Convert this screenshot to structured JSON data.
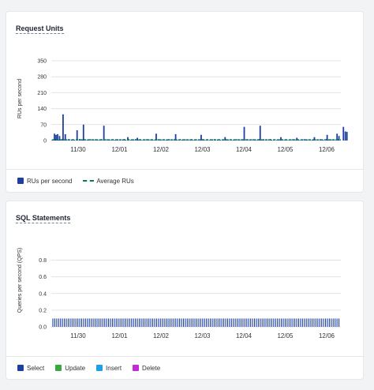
{
  "panels": {
    "ru": {
      "title": "Request Units"
    },
    "sql": {
      "title": "SQL Statements"
    }
  },
  "chart_data": [
    {
      "type": "bar",
      "title": "Request Units",
      "ylabel": "RUs per second",
      "ylim": [
        0,
        350
      ],
      "y_ticks": [
        0,
        70,
        140,
        210,
        280,
        350
      ],
      "x_ticks": [
        "11/30",
        "12/01",
        "12/02",
        "12/03",
        "12/04",
        "12/05",
        "12/06"
      ],
      "grid": true,
      "legend_position": "bottom-left",
      "series": [
        {
          "name": "RUs per second",
          "color": "#1d3f9e",
          "baseline": 5,
          "spikes": [
            {
              "x": 0.0,
              "y": 30
            },
            {
              "x": 0.05,
              "y": 25
            },
            {
              "x": 0.1,
              "y": 28
            },
            {
              "x": 0.16,
              "y": 20
            },
            {
              "x": 0.27,
              "y": 115
            },
            {
              "x": 0.34,
              "y": 28
            },
            {
              "x": 0.71,
              "y": 45
            },
            {
              "x": 0.91,
              "y": 70
            },
            {
              "x": 1.55,
              "y": 65
            },
            {
              "x": 2.3,
              "y": 15
            },
            {
              "x": 2.6,
              "y": 12
            },
            {
              "x": 3.19,
              "y": 30
            },
            {
              "x": 3.8,
              "y": 28
            },
            {
              "x": 4.6,
              "y": 25
            },
            {
              "x": 5.35,
              "y": 15
            },
            {
              "x": 5.95,
              "y": 60
            },
            {
              "x": 6.45,
              "y": 65
            },
            {
              "x": 7.1,
              "y": 15
            },
            {
              "x": 7.6,
              "y": 12
            },
            {
              "x": 8.15,
              "y": 15
            },
            {
              "x": 8.55,
              "y": 25
            },
            {
              "x": 8.86,
              "y": 30
            },
            {
              "x": 8.92,
              "y": 20
            },
            {
              "x": 9.06,
              "y": 60
            },
            {
              "x": 9.12,
              "y": 40
            },
            {
              "x": 9.17,
              "y": 38
            }
          ]
        },
        {
          "name": "Average RUs",
          "color": "#0f7a5a",
          "style": "dashed",
          "value": 3
        }
      ]
    },
    {
      "type": "bar",
      "title": "SQL Statements",
      "ylabel": "Queries per second (QPS)",
      "ylim": [
        0,
        0.9
      ],
      "y_ticks": [
        "0.0",
        "0.2",
        "0.4",
        "0.6",
        "0.8"
      ],
      "x_ticks": [
        "11/30",
        "12/01",
        "12/02",
        "12/03",
        "12/04",
        "12/05",
        "12/06"
      ],
      "grid": true,
      "legend_position": "bottom-left",
      "series": [
        {
          "name": "Select",
          "color": "#1d3f9e",
          "value": 0.1
        },
        {
          "name": "Update",
          "color": "#3aa83f",
          "value": 0
        },
        {
          "name": "Insert",
          "color": "#1ea0e6",
          "value": 0
        },
        {
          "name": "Delete",
          "color": "#c02ccf",
          "value": 0
        }
      ]
    }
  ]
}
